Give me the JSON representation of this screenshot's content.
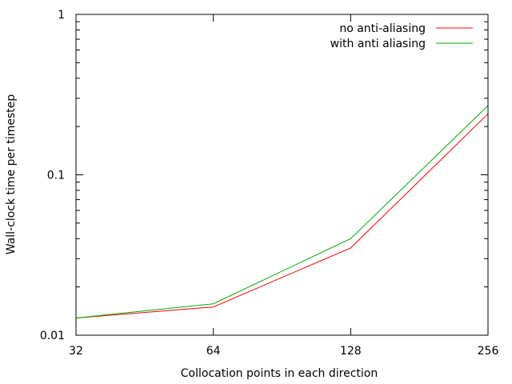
{
  "chart_data": {
    "type": "line",
    "title": "",
    "xlabel": "Collocation points in each direction",
    "ylabel": "Wall-clock time per timestep",
    "x_scale": "log2",
    "y_scale": "log10",
    "xlim": [
      32,
      256
    ],
    "ylim": [
      0.01,
      1
    ],
    "x_ticks": [
      {
        "value": 32,
        "label": "32"
      },
      {
        "value": 64,
        "label": "64"
      },
      {
        "value": 128,
        "label": "128"
      },
      {
        "value": 256,
        "label": "256"
      }
    ],
    "y_ticks": [
      {
        "value": 0.01,
        "label": "0.01"
      },
      {
        "value": 0.1,
        "label": "0.1"
      },
      {
        "value": 1,
        "label": "1"
      }
    ],
    "grid": false,
    "legend_position": "top-right",
    "series": [
      {
        "name": "no anti-aliasing",
        "color": "#ff0000",
        "x": [
          32,
          64,
          128,
          256
        ],
        "y": [
          0.0128,
          0.015,
          0.035,
          0.24
        ]
      },
      {
        "name": "with anti aliasing",
        "color": "#00aa00",
        "x": [
          32,
          64,
          128,
          256
        ],
        "y": [
          0.0128,
          0.0157,
          0.04,
          0.27
        ]
      }
    ]
  }
}
